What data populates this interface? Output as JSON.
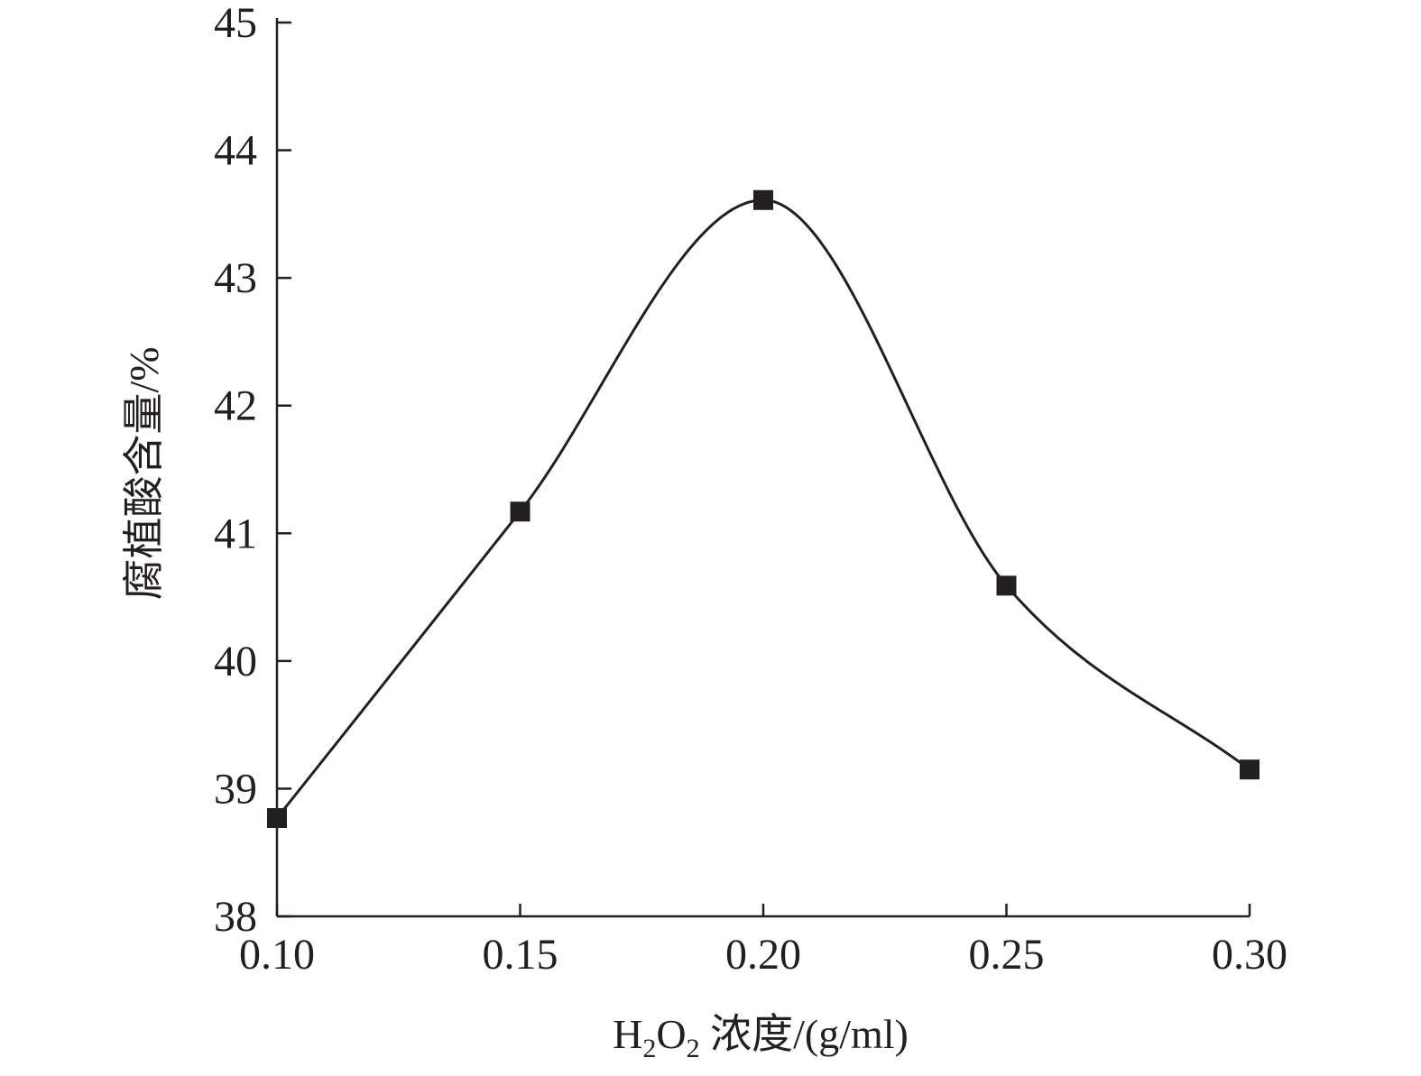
{
  "chart_data": {
    "type": "line",
    "smooth": true,
    "marker": "square",
    "title": "",
    "xlabel": "H2O2 浓度/(g/ml)",
    "xlabel_parts": {
      "h": "H",
      "sub1": "2",
      "o": "O",
      "sub2": "2",
      "rest": " 浓度/(g/ml)"
    },
    "ylabel": "腐植酸含量/%",
    "x_ticks": [
      "0.10",
      "0.15",
      "0.20",
      "0.25",
      "0.30"
    ],
    "y_ticks": [
      "38",
      "39",
      "40",
      "41",
      "42",
      "43",
      "44",
      "45"
    ],
    "xlim": [
      0.1,
      0.3
    ],
    "ylim": [
      38,
      45
    ],
    "grid": false,
    "legend": "none",
    "series": [
      {
        "x": [
          0.1,
          0.15,
          0.2,
          0.25,
          0.3
        ],
        "values": [
          38.77,
          41.17,
          43.61,
          40.59,
          39.15
        ]
      }
    ],
    "colors": {
      "line": "#231f20",
      "marker": "#231f20",
      "axis": "#231f20"
    }
  }
}
